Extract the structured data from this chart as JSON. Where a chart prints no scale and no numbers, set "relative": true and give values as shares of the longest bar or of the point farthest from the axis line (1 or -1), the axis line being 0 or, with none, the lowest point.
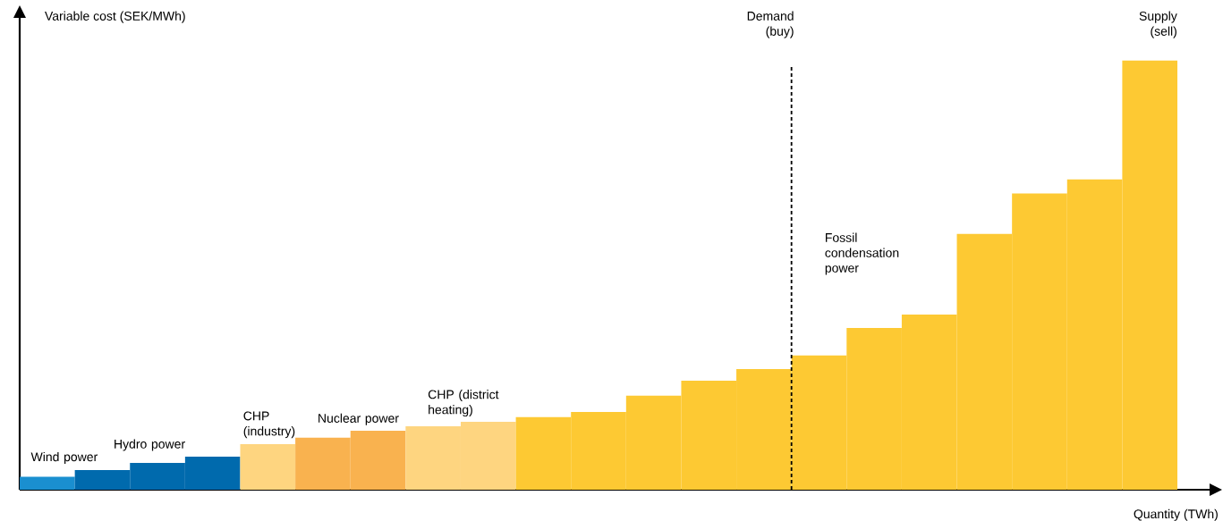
{
  "chart_data": {
    "type": "bar",
    "relative": true,
    "xlabel": "Quantity (TWh)",
    "ylabel": "Variable cost (SEK/MWh)",
    "categories": [
      null,
      null,
      null,
      null,
      null,
      null,
      null,
      null,
      null,
      null,
      null,
      null,
      null,
      null,
      null,
      null,
      null,
      null,
      null,
      null,
      null
    ],
    "values": [
      0.03,
      0.046,
      0.0625,
      0.077,
      0.106,
      0.121,
      0.1375,
      0.148,
      0.158,
      0.169,
      0.181,
      0.219,
      0.254,
      0.281,
      0.313,
      0.377,
      0.408,
      0.596,
      0.69,
      0.723,
      1
    ],
    "colors": [
      "#1a8fd0",
      "#006aad",
      "#006aad",
      "#006aad",
      "#fed580",
      "#f9b24f",
      "#f9b24f",
      "#fed580",
      "#fed580",
      "#fdc933",
      "#fdc933",
      "#fdc933",
      "#fdc933",
      "#fdc933",
      "#fdc933",
      "#fdc933",
      "#fdc933",
      "#fdc933",
      "#fdc933",
      "#fdc933",
      "#fdc933"
    ],
    "annotations": [
      "Wind power",
      "Hydro power",
      "CHP (industry)",
      "Nuclear power",
      "CHP (district heating)",
      "Fossil condensation power",
      "Supply (sell)",
      "Demand (buy)"
    ]
  }
}
